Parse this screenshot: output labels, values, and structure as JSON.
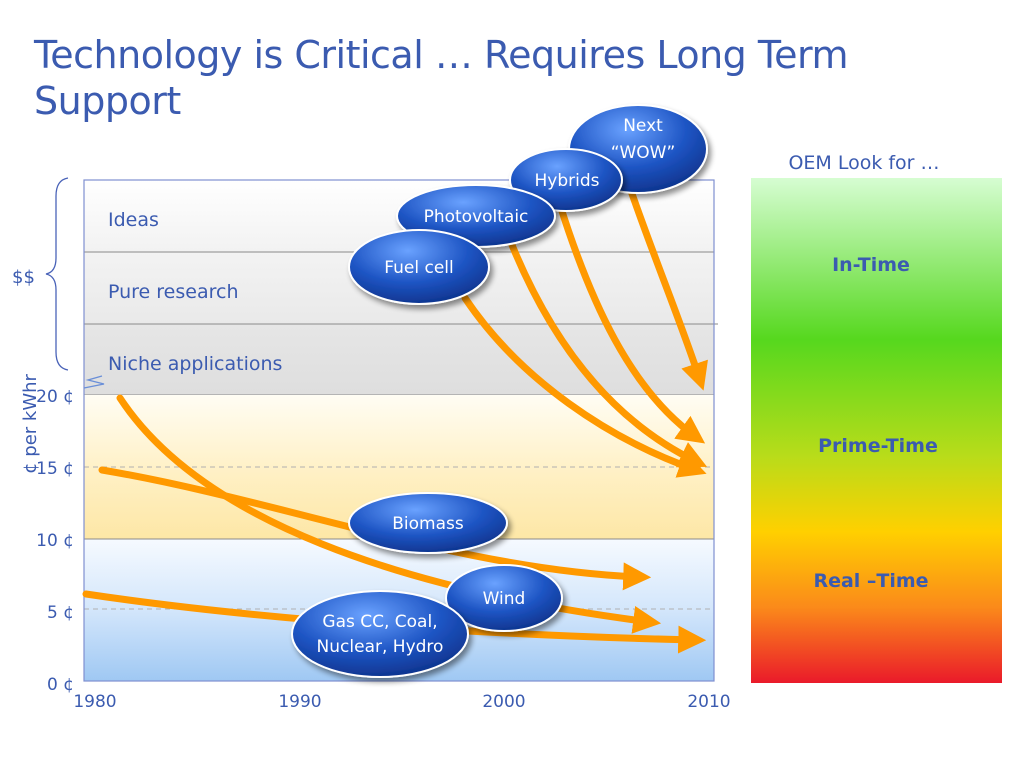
{
  "slide": {
    "title": "Technology is Critical … Requires Long Term Support"
  },
  "chart_data": {
    "type": "diagram",
    "y_axis_label": "¢ per kWhr",
    "y_ticks": [
      "0 ¢",
      "5 ¢",
      "10 ¢",
      "15 ¢",
      "20 ¢"
    ],
    "x_ticks": [
      "1980",
      "1990",
      "2000",
      "2010"
    ],
    "bands": [
      "Ideas",
      "Pure research",
      "Niche applications"
    ],
    "bracket_label": "$$",
    "bubbles": [
      {
        "name": "next-wow",
        "label": "Next\n“WOW”"
      },
      {
        "name": "hybrids",
        "label": "Hybrids"
      },
      {
        "name": "photovoltaic",
        "label": "Photovoltaic"
      },
      {
        "name": "fuel-cell",
        "label": "Fuel cell"
      },
      {
        "name": "biomass",
        "label": "Biomass"
      },
      {
        "name": "wind",
        "label": "Wind"
      },
      {
        "name": "gas-coal",
        "label": "Gas CC, Coal,\nNuclear, Hydro"
      }
    ],
    "oem": {
      "heading": "OEM Look for …",
      "levels": [
        "In-Time",
        "Prime-Time",
        "Real –Time"
      ]
    },
    "colors": {
      "title": "#3b5bb0",
      "arrow": "#ff9900",
      "bubble": "#1a4fb8",
      "frame": "#7f8fd0"
    }
  }
}
